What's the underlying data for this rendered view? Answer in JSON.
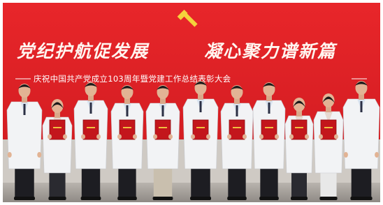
{
  "banner": {
    "headline_left": "党纪护航促发展",
    "headline_right": "凝心聚力谱新篇",
    "subtitle": "庆祝中国共产党成立103周年暨党建工作总结表彰大会"
  }
}
